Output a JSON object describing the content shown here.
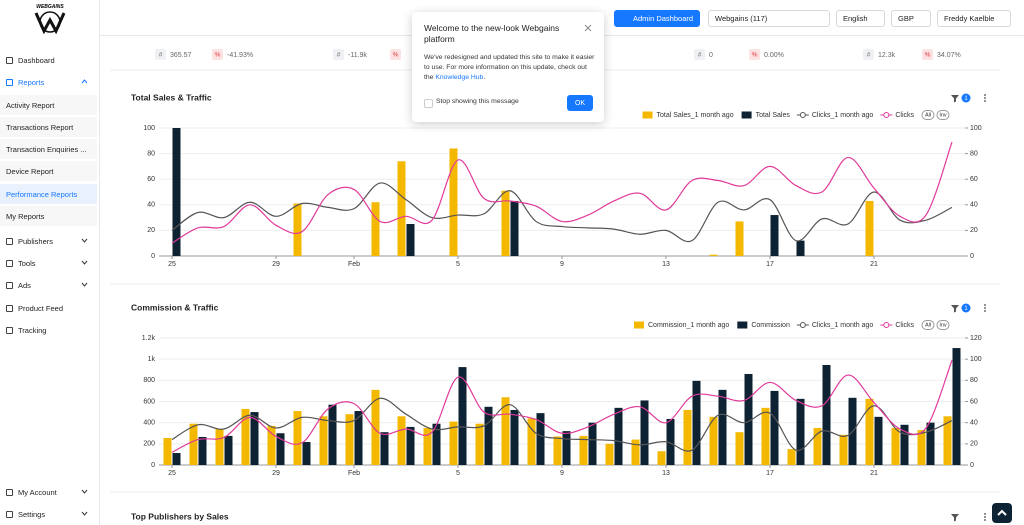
{
  "sidebar": {
    "logo": "WEBGAINS",
    "items": [
      {
        "label": "Dashboard"
      },
      {
        "label": "Reports"
      },
      {
        "label": "Activity Report"
      },
      {
        "label": "Transactions Report"
      },
      {
        "label": "Transaction Enquiries ..."
      },
      {
        "label": "Device Report"
      },
      {
        "label": "Performance Reports"
      },
      {
        "label": "My Reports"
      },
      {
        "label": "Publishers"
      },
      {
        "label": "Tools"
      },
      {
        "label": "Ads"
      },
      {
        "label": "Product Feed"
      },
      {
        "label": "Tracking"
      },
      {
        "label": "My Account"
      },
      {
        "label": "Settings"
      }
    ]
  },
  "topbar": {
    "admin_button": "Admin Dashboard",
    "account": "Webgains (117)",
    "language": "English",
    "currency": "GBP",
    "user": "Freddy Kaelble"
  },
  "popup": {
    "title": "Welcome to the new-look Webgains platform",
    "body": "We've redesigned and updated this site to make it easier to use. For more information on this update, check out the ",
    "link": "Knowledge Hub",
    "body_end": ".",
    "checkbox": "Stop showing this message",
    "button": "OK"
  },
  "stats": [
    {
      "icon": "#",
      "value": "365.57"
    },
    {
      "icon": "%",
      "value": "-41.93%"
    },
    {
      "icon": "#",
      "value": "-11.9k"
    },
    {
      "icon": "%"
    },
    {
      "icon": "#",
      "value": "0"
    },
    {
      "icon": "%",
      "value": "0.00%"
    },
    {
      "icon": "#",
      "value": "12.3k"
    },
    {
      "icon": "%",
      "value": "34.07%"
    }
  ],
  "chart_data": [
    {
      "type": "bar",
      "title": "Total Sales & Traffic",
      "filter_count": "1",
      "buttons": [
        "All",
        "Inv"
      ],
      "categories": [
        "25",
        null,
        null,
        null,
        "29",
        null,
        null,
        "Feb",
        null,
        null,
        null,
        "5",
        null,
        null,
        null,
        "9",
        null,
        null,
        null,
        "13",
        null,
        null,
        null,
        "17",
        null,
        null,
        null,
        "21",
        null,
        null,
        null
      ],
      "ylim": [
        0,
        100
      ],
      "yticks": [
        0,
        20,
        40,
        60,
        80,
        100
      ],
      "y2lim": [
        0,
        100
      ],
      "y2ticks": [
        0,
        20,
        40,
        60,
        80,
        100
      ],
      "grid": true,
      "series": [
        {
          "name": "Total Sales_1 month ago",
          "type": "bar",
          "color": "#f5b800",
          "values": [
            null,
            null,
            null,
            null,
            null,
            41,
            null,
            null,
            42,
            74,
            null,
            84,
            null,
            51,
            null,
            null,
            null,
            null,
            null,
            null,
            null,
            1,
            27,
            null,
            null,
            null,
            null,
            43,
            null,
            null,
            null
          ]
        },
        {
          "name": "Total Sales",
          "type": "bar",
          "color": "#0d2233",
          "values": [
            100,
            null,
            null,
            null,
            null,
            null,
            null,
            null,
            null,
            25,
            null,
            null,
            null,
            43,
            null,
            null,
            null,
            null,
            null,
            null,
            null,
            null,
            null,
            32,
            12,
            null,
            null,
            null,
            null,
            null,
            null
          ]
        },
        {
          "name": "Clicks_1 month ago",
          "type": "line",
          "axis": "y2",
          "color": "#555555",
          "values": [
            20,
            34,
            30,
            42,
            31,
            41,
            38,
            37,
            57,
            44,
            30,
            32,
            33,
            51,
            27,
            23,
            22,
            21,
            17,
            20,
            12,
            42,
            36,
            44,
            12,
            29,
            25,
            50,
            28,
            28,
            38
          ]
        },
        {
          "name": "Clicks",
          "type": "line",
          "axis": "y2",
          "color": "#e0399a",
          "values": [
            10,
            22,
            23,
            40,
            24,
            19,
            48,
            52,
            27,
            31,
            28,
            75,
            45,
            43,
            39,
            27,
            32,
            43,
            49,
            36,
            59,
            59,
            55,
            70,
            55,
            50,
            77,
            53,
            31,
            32,
            89
          ]
        }
      ]
    },
    {
      "type": "bar",
      "title": "Commission & Traffic",
      "filter_count": "1",
      "buttons": [
        "All",
        "Inv"
      ],
      "categories": [
        "25",
        null,
        null,
        null,
        "29",
        null,
        null,
        "Feb",
        null,
        null,
        null,
        "5",
        null,
        null,
        null,
        "9",
        null,
        null,
        null,
        "13",
        null,
        null,
        null,
        "17",
        null,
        null,
        null,
        "21",
        null,
        null,
        null
      ],
      "ylim": [
        0,
        1200
      ],
      "yticks": [
        0,
        200,
        400,
        600,
        800,
        {
          "value": 1000,
          "label": "1k"
        },
        {
          "value": 1200,
          "label": "1.2k"
        }
      ],
      "y2lim": [
        0,
        120
      ],
      "y2ticks": [
        0,
        20,
        40,
        60,
        80,
        100,
        120
      ],
      "grid": true,
      "series": [
        {
          "name": "Commission_1 month ago",
          "type": "bar",
          "color": "#f5b800",
          "values": [
            255,
            390,
            340,
            530,
            370,
            510,
            460,
            480,
            710,
            460,
            350,
            410,
            390,
            640,
            440,
            270,
            275,
            200,
            240,
            130,
            520,
            455,
            310,
            540,
            150,
            350,
            285,
            625,
            350,
            330,
            460
          ]
        },
        {
          "name": "Commission",
          "type": "bar",
          "color": "#0d2233",
          "values": [
            113,
            265,
            275,
            500,
            300,
            217,
            570,
            510,
            310,
            360,
            390,
            925,
            550,
            520,
            490,
            320,
            400,
            540,
            610,
            435,
            795,
            710,
            860,
            700,
            625,
            945,
            635,
            455,
            380,
            400,
            1105
          ]
        },
        {
          "name": "Clicks_1 month ago",
          "type": "line",
          "axis": "y2",
          "color": "#555555",
          "values": [
            24,
            38,
            34,
            47,
            35,
            45,
            42,
            42,
            63,
            48,
            34,
            36,
            37,
            57,
            30,
            25,
            24,
            23,
            19,
            22,
            14,
            47,
            40,
            49,
            14,
            32,
            28,
            56,
            31,
            31,
            42
          ]
        },
        {
          "name": "Clicks",
          "type": "line",
          "axis": "y2",
          "color": "#e0399a",
          "values": [
            12,
            24,
            26,
            45,
            27,
            21,
            53,
            58,
            30,
            34,
            31,
            83,
            50,
            48,
            43,
            30,
            36,
            48,
            55,
            40,
            65,
            65,
            61,
            78,
            61,
            56,
            85,
            59,
            34,
            35,
            99
          ]
        }
      ]
    }
  ],
  "bottom_section": {
    "title": "Top Publishers by Sales"
  }
}
